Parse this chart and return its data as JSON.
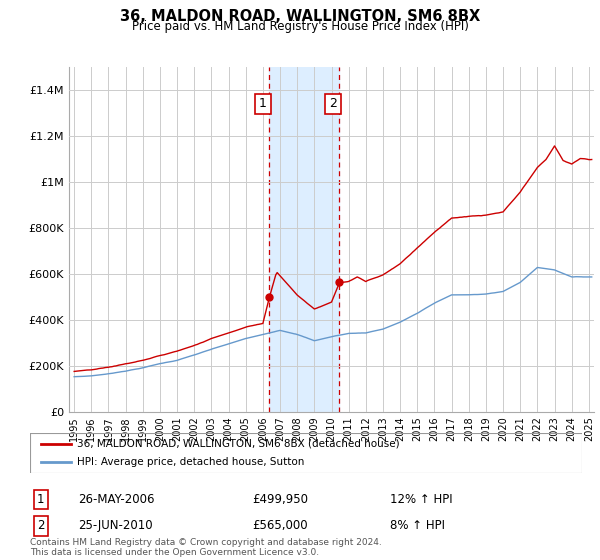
{
  "title": "36, MALDON ROAD, WALLINGTON, SM6 8BX",
  "subtitle": "Price paid vs. HM Land Registry's House Price Index (HPI)",
  "legend_line1": "36, MALDON ROAD, WALLINGTON, SM6 8BX (detached house)",
  "legend_line2": "HPI: Average price, detached house, Sutton",
  "transaction1_date": "26-MAY-2006",
  "transaction1_price": "£499,950",
  "transaction1_hpi": "12% ↑ HPI",
  "transaction2_date": "25-JUN-2010",
  "transaction2_price": "£565,000",
  "transaction2_hpi": "8% ↑ HPI",
  "footer": "Contains HM Land Registry data © Crown copyright and database right 2024.\nThis data is licensed under the Open Government Licence v3.0.",
  "ylim": [
    0,
    1500000
  ],
  "yticks": [
    0,
    200000,
    400000,
    600000,
    800000,
    1000000,
    1200000,
    1400000
  ],
  "ytick_labels": [
    "£0",
    "£200K",
    "£400K",
    "£600K",
    "£800K",
    "£1M",
    "£1.2M",
    "£1.4M"
  ],
  "red_color": "#cc0000",
  "blue_color": "#6699cc",
  "shade_color": "#ddeeff",
  "transaction1_year": 2006.38,
  "transaction2_year": 2010.46,
  "t1_price": 499950,
  "t2_price": 565000,
  "background_color": "#ffffff",
  "grid_color": "#cccccc",
  "xlim_left": 1994.7,
  "xlim_right": 2025.3
}
